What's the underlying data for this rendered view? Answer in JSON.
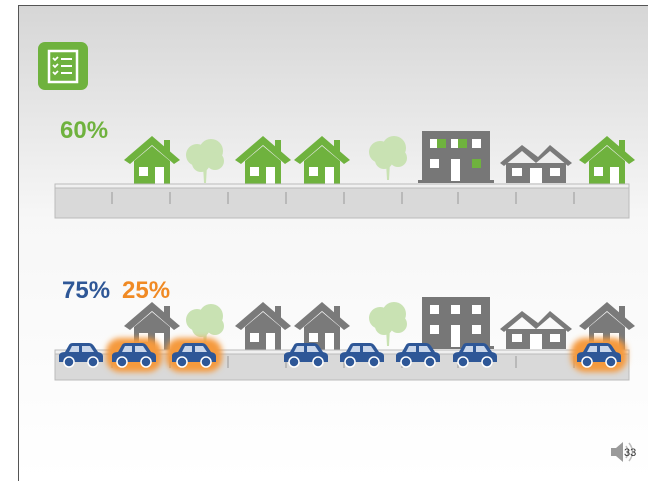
{
  "row1": {
    "label": "60%"
  },
  "row2": {
    "labels": [
      "75%",
      "25%"
    ]
  },
  "slide_number": "33"
}
